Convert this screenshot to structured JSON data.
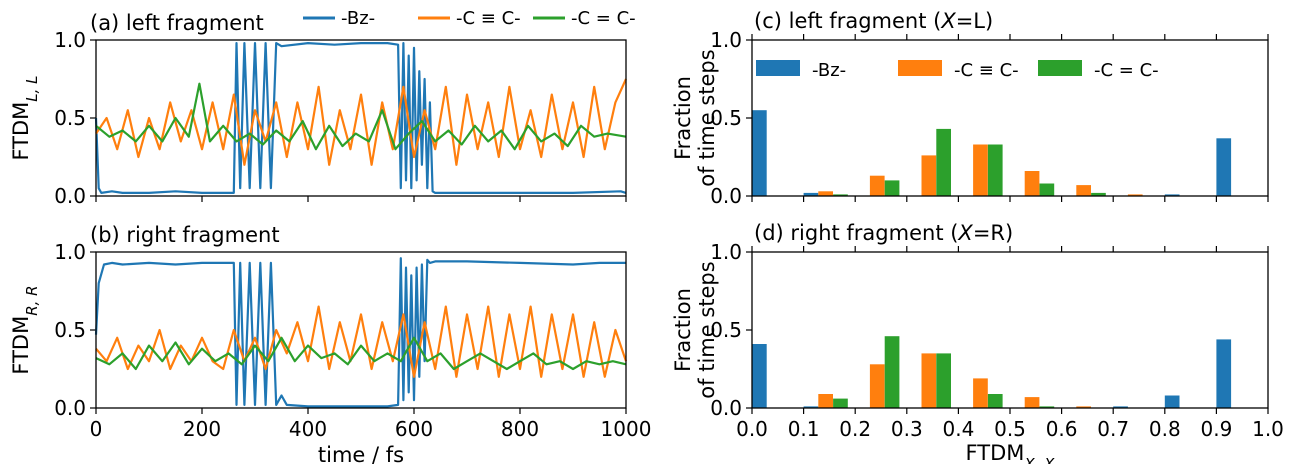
{
  "colors": {
    "bz": "#1f77b4",
    "triple": "#ff7f0e",
    "double": "#2ca02c"
  },
  "chart_data": [
    {
      "type": "line",
      "panel": "a",
      "title": "(a) left fragment",
      "ylabel_main": "FTDM",
      "ylabel_sub": "L, L",
      "xlim": [
        0,
        1000
      ],
      "ylim": [
        0,
        1
      ],
      "x_ticks": [
        "0",
        "200",
        "400",
        "600",
        "800",
        "1000"
      ],
      "y_ticks": [
        "0.0",
        "0.5",
        "1.0"
      ],
      "legend": [
        "-Bz-",
        "-C ≡ C-",
        "-C = C-"
      ],
      "series": [
        {
          "name": "-Bz-",
          "x": [
            0,
            5,
            10,
            30,
            50,
            100,
            150,
            200,
            260,
            265,
            272,
            280,
            290,
            300,
            310,
            320,
            330,
            340,
            350,
            400,
            450,
            500,
            550,
            570,
            575,
            580,
            585,
            590,
            595,
            600,
            605,
            610,
            615,
            620,
            625,
            630,
            635,
            640,
            700,
            800,
            900,
            990,
            1000
          ],
          "y": [
            0.5,
            0.05,
            0.02,
            0.03,
            0.02,
            0.02,
            0.03,
            0.02,
            0.02,
            0.98,
            0.05,
            0.98,
            0.05,
            0.98,
            0.05,
            0.98,
            0.05,
            0.98,
            0.96,
            0.98,
            0.97,
            0.98,
            0.98,
            0.97,
            0.05,
            0.98,
            0.1,
            0.9,
            0.05,
            0.95,
            0.1,
            0.8,
            0.2,
            0.75,
            0.05,
            0.6,
            0.03,
            0.02,
            0.02,
            0.02,
            0.02,
            0.03,
            0.02
          ]
        },
        {
          "name": "-C ≡ C-",
          "x": [
            0,
            20,
            40,
            60,
            80,
            100,
            120,
            140,
            160,
            180,
            200,
            220,
            240,
            260,
            280,
            300,
            320,
            340,
            360,
            380,
            400,
            420,
            440,
            460,
            480,
            500,
            520,
            540,
            560,
            580,
            600,
            620,
            640,
            660,
            680,
            700,
            720,
            740,
            760,
            780,
            800,
            820,
            840,
            860,
            880,
            900,
            920,
            940,
            960,
            980,
            1000
          ],
          "y": [
            0.4,
            0.5,
            0.3,
            0.55,
            0.25,
            0.5,
            0.3,
            0.6,
            0.35,
            0.55,
            0.3,
            0.6,
            0.3,
            0.65,
            0.2,
            0.55,
            0.35,
            0.6,
            0.25,
            0.6,
            0.3,
            0.7,
            0.2,
            0.55,
            0.3,
            0.65,
            0.2,
            0.6,
            0.3,
            0.7,
            0.25,
            0.55,
            0.3,
            0.7,
            0.2,
            0.65,
            0.3,
            0.6,
            0.25,
            0.7,
            0.3,
            0.55,
            0.25,
            0.65,
            0.3,
            0.6,
            0.25,
            0.7,
            0.3,
            0.6,
            0.75
          ]
        },
        {
          "name": "-C = C-",
          "x": [
            0,
            25,
            50,
            75,
            100,
            125,
            150,
            175,
            195,
            215,
            240,
            265,
            290,
            315,
            340,
            365,
            390,
            415,
            440,
            465,
            490,
            515,
            540,
            565,
            590,
            615,
            640,
            665,
            690,
            715,
            740,
            765,
            790,
            815,
            840,
            865,
            890,
            915,
            940,
            965,
            1000
          ],
          "y": [
            0.45,
            0.38,
            0.42,
            0.35,
            0.45,
            0.35,
            0.5,
            0.38,
            0.72,
            0.35,
            0.45,
            0.35,
            0.4,
            0.33,
            0.42,
            0.35,
            0.48,
            0.3,
            0.45,
            0.32,
            0.4,
            0.35,
            0.55,
            0.3,
            0.4,
            0.48,
            0.35,
            0.42,
            0.33,
            0.45,
            0.35,
            0.42,
            0.3,
            0.45,
            0.35,
            0.4,
            0.32,
            0.45,
            0.38,
            0.4,
            0.38
          ]
        }
      ]
    },
    {
      "type": "line",
      "panel": "b",
      "title": "(b) right fragment",
      "ylabel_main": "FTDM",
      "ylabel_sub": "R, R",
      "xlabel": "time / fs",
      "xlim": [
        0,
        1000
      ],
      "ylim": [
        0,
        1
      ],
      "x_ticks": [
        "0",
        "200",
        "400",
        "600",
        "800",
        "1000"
      ],
      "y_ticks": [
        "0.0",
        "0.5",
        "1.0"
      ],
      "series": [
        {
          "name": "-Bz-",
          "x": [
            0,
            5,
            15,
            30,
            50,
            100,
            150,
            200,
            260,
            265,
            272,
            280,
            290,
            300,
            310,
            320,
            330,
            340,
            350,
            360,
            400,
            450,
            500,
            550,
            570,
            575,
            580,
            585,
            590,
            595,
            600,
            605,
            610,
            615,
            620,
            625,
            630,
            640,
            700,
            800,
            900,
            950,
            1000
          ],
          "y": [
            0.47,
            0.8,
            0.92,
            0.93,
            0.92,
            0.93,
            0.92,
            0.93,
            0.93,
            0.02,
            0.93,
            0.02,
            0.93,
            0.02,
            0.93,
            0.02,
            0.93,
            0.02,
            0.08,
            0.02,
            0.01,
            0.01,
            0.01,
            0.01,
            0.02,
            0.96,
            0.05,
            0.9,
            0.1,
            0.85,
            0.05,
            0.9,
            0.2,
            0.92,
            0.3,
            0.95,
            0.93,
            0.94,
            0.94,
            0.93,
            0.92,
            0.93,
            0.93
          ]
        },
        {
          "name": "-C ≡ C-",
          "x": [
            0,
            20,
            40,
            60,
            80,
            100,
            120,
            140,
            160,
            180,
            200,
            220,
            240,
            260,
            280,
            300,
            320,
            340,
            360,
            380,
            400,
            420,
            440,
            460,
            480,
            500,
            520,
            540,
            560,
            580,
            600,
            620,
            640,
            660,
            680,
            700,
            720,
            740,
            760,
            780,
            800,
            820,
            840,
            860,
            880,
            900,
            920,
            940,
            960,
            980,
            1000
          ],
          "y": [
            0.38,
            0.3,
            0.45,
            0.25,
            0.4,
            0.3,
            0.5,
            0.25,
            0.4,
            0.3,
            0.45,
            0.3,
            0.25,
            0.5,
            0.3,
            0.45,
            0.25,
            0.5,
            0.35,
            0.55,
            0.3,
            0.65,
            0.25,
            0.55,
            0.3,
            0.6,
            0.25,
            0.55,
            0.3,
            0.6,
            0.2,
            0.55,
            0.25,
            0.65,
            0.2,
            0.6,
            0.25,
            0.65,
            0.2,
            0.6,
            0.25,
            0.65,
            0.2,
            0.6,
            0.25,
            0.6,
            0.2,
            0.55,
            0.2,
            0.5,
            0.3
          ]
        },
        {
          "name": "-C = C-",
          "x": [
            0,
            25,
            50,
            75,
            100,
            125,
            150,
            175,
            200,
            225,
            250,
            275,
            300,
            325,
            350,
            375,
            400,
            425,
            450,
            475,
            500,
            525,
            550,
            575,
            600,
            625,
            650,
            675,
            700,
            725,
            750,
            775,
            800,
            825,
            850,
            875,
            900,
            925,
            950,
            975,
            1000
          ],
          "y": [
            0.32,
            0.28,
            0.35,
            0.25,
            0.4,
            0.3,
            0.42,
            0.28,
            0.38,
            0.3,
            0.35,
            0.28,
            0.4,
            0.3,
            0.45,
            0.3,
            0.4,
            0.32,
            0.35,
            0.28,
            0.4,
            0.3,
            0.35,
            0.3,
            0.45,
            0.3,
            0.35,
            0.25,
            0.3,
            0.35,
            0.3,
            0.25,
            0.3,
            0.35,
            0.28,
            0.3,
            0.25,
            0.3,
            0.28,
            0.3,
            0.28
          ]
        }
      ]
    },
    {
      "type": "bar",
      "panel": "c",
      "title_prefix": "(c) left fragment (",
      "title_var": "X",
      "title_suffix": "=L)",
      "ylabel_line1": "Fraction",
      "ylabel_line2": "of time steps",
      "xlim": [
        0,
        1
      ],
      "ylim": [
        0,
        1
      ],
      "bin_width": 0.1,
      "x_ticks": [
        "0.0",
        "0.1",
        "0.2",
        "0.3",
        "0.4",
        "0.5",
        "0.6",
        "0.7",
        "0.8",
        "0.9",
        "1.0"
      ],
      "y_ticks": [
        "0.0",
        "0.5",
        "1.0"
      ],
      "legend": [
        "-Bz-",
        "-C ≡ C-",
        "-C = C-"
      ],
      "series": [
        {
          "name": "-Bz-",
          "values": [
            0.55,
            0.02,
            0.0,
            0.0,
            0.0,
            0.0,
            0.0,
            0.0,
            0.01,
            0.37
          ]
        },
        {
          "name": "-C ≡ C-",
          "values": [
            0.0,
            0.03,
            0.13,
            0.26,
            0.33,
            0.16,
            0.07,
            0.01,
            0.0,
            0.0
          ]
        },
        {
          "name": "-C = C-",
          "values": [
            0.0,
            0.01,
            0.1,
            0.43,
            0.33,
            0.08,
            0.02,
            0.0,
            0.0,
            0.0
          ]
        }
      ]
    },
    {
      "type": "bar",
      "panel": "d",
      "title_prefix": "(d) right fragment (",
      "title_var": "X",
      "title_suffix": "=R)",
      "ylabel_line1": "Fraction",
      "ylabel_line2": "of time steps",
      "xlabel_main": "FTDM",
      "xlabel_sub": "X, X",
      "xlim": [
        0,
        1
      ],
      "ylim": [
        0,
        1
      ],
      "bin_width": 0.1,
      "x_ticks": [
        "0.0",
        "0.1",
        "0.2",
        "0.3",
        "0.4",
        "0.5",
        "0.6",
        "0.7",
        "0.8",
        "0.9",
        "1.0"
      ],
      "y_ticks": [
        "0.0",
        "0.5",
        "1.0"
      ],
      "series": [
        {
          "name": "-Bz-",
          "values": [
            0.41,
            0.01,
            0.0,
            0.0,
            0.0,
            0.0,
            0.0,
            0.01,
            0.08,
            0.44
          ]
        },
        {
          "name": "-C ≡ C-",
          "values": [
            0.0,
            0.09,
            0.28,
            0.35,
            0.19,
            0.07,
            0.01,
            0.0,
            0.0,
            0.0
          ]
        },
        {
          "name": "-C = C-",
          "values": [
            0.0,
            0.06,
            0.46,
            0.35,
            0.09,
            0.01,
            0.0,
            0.0,
            0.0,
            0.0
          ]
        }
      ]
    }
  ]
}
